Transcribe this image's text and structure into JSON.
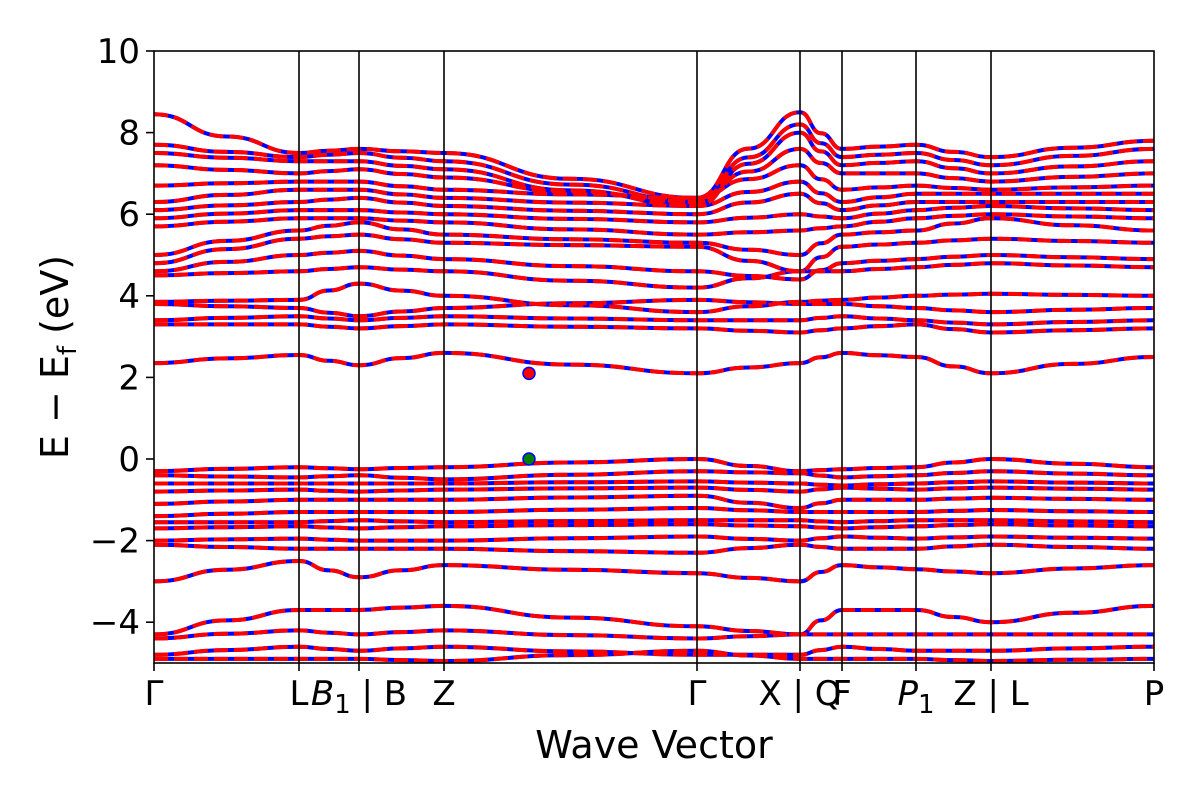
{
  "chart_data": {
    "type": "line",
    "title": "",
    "xlabel": "Wave Vector",
    "ylabel": "E − E",
    "ylabel_sub": "f",
    "ylabel_unit": " (eV)",
    "ylim": [
      -5,
      10
    ],
    "yticks": [
      {
        "value": 10,
        "label": "10"
      },
      {
        "value": 8,
        "label": "8"
      },
      {
        "value": 6,
        "label": "6"
      },
      {
        "value": 4,
        "label": "4"
      },
      {
        "value": 2,
        "label": "2"
      },
      {
        "value": 0,
        "label": "0"
      },
      {
        "value": -2,
        "label": "−2"
      },
      {
        "value": -4,
        "label": "−4"
      }
    ],
    "xlim": [
      0,
      1
    ],
    "kpoints": [
      {
        "pos": 0.0,
        "label": "Γ"
      },
      {
        "pos": 0.145,
        "label": "L"
      },
      {
        "pos": 0.205,
        "label": "B",
        "sub": "1",
        "suffix": " | B"
      },
      {
        "pos": 0.29,
        "label": "Z"
      },
      {
        "pos": 0.543,
        "label": "Γ"
      },
      {
        "pos": 0.646,
        "label": "X | Q"
      },
      {
        "pos": 0.688,
        "label": "F"
      },
      {
        "pos": 0.762,
        "label": "P",
        "sub": "1",
        "italic": true
      },
      {
        "pos": 0.837,
        "label": "Z | L"
      },
      {
        "pos": 1.0,
        "label": "P"
      }
    ],
    "series_styles": [
      {
        "color": "#0000ff",
        "dash": "solid"
      },
      {
        "color": "#ff0000",
        "dash": "dashed"
      }
    ],
    "markers": [
      {
        "x": 0.375,
        "y": 2.1,
        "color": "#ff0000",
        "edge": "#0000ff",
        "meaning": "CBM"
      },
      {
        "x": 0.375,
        "y": 0.0,
        "color": "#008000",
        "edge": "#0000ff",
        "meaning": "VBM"
      }
    ],
    "bands": [
      {
        "segment_values": [
          8.45,
          7.5,
          7.6,
          7.5,
          6.4,
          8.5,
          7.6,
          7.7,
          7.4,
          7.8,
          7.6
        ]
      },
      {
        "segment_values": [
          7.7,
          7.4,
          7.5,
          7.3,
          6.3,
          8.2,
          7.4,
          7.5,
          7.2,
          7.6,
          7.4
        ]
      },
      {
        "segment_values": [
          7.5,
          7.3,
          7.3,
          7.1,
          6.2,
          8.0,
          7.2,
          7.3,
          7.0,
          7.3,
          7.2
        ]
      },
      {
        "segment_values": [
          7.2,
          7.0,
          7.1,
          6.9,
          6.3,
          7.6,
          7.0,
          7.0,
          6.8,
          7.0,
          7.0
        ]
      },
      {
        "segment_values": [
          6.7,
          6.8,
          6.8,
          6.6,
          6.4,
          7.2,
          6.6,
          6.7,
          6.6,
          6.7,
          6.9
        ]
      },
      {
        "segment_values": [
          6.3,
          6.6,
          6.6,
          6.4,
          6.2,
          6.8,
          6.3,
          6.5,
          6.5,
          6.5,
          6.6
        ]
      },
      {
        "segment_values": [
          6.1,
          6.3,
          6.4,
          6.2,
          6.0,
          6.5,
          6.1,
          6.3,
          6.3,
          6.3,
          6.3
        ]
      },
      {
        "segment_values": [
          5.9,
          6.1,
          6.1,
          6.0,
          5.8,
          6.0,
          5.9,
          6.1,
          6.2,
          6.1,
          6.0
        ]
      },
      {
        "segment_values": [
          5.7,
          5.9,
          5.9,
          5.8,
          5.5,
          5.6,
          5.7,
          5.9,
          6.0,
          5.9,
          5.8
        ]
      },
      {
        "segment_values": [
          5.0,
          5.6,
          5.8,
          5.5,
          5.3,
          5.0,
          5.5,
          5.6,
          5.9,
          5.6,
          5.4
        ]
      },
      {
        "segment_values": [
          4.8,
          5.4,
          5.5,
          5.3,
          5.2,
          4.6,
          5.2,
          5.3,
          5.4,
          5.3,
          5.0
        ]
      },
      {
        "segment_values": [
          4.6,
          5.0,
          5.1,
          4.9,
          4.6,
          4.4,
          4.8,
          4.9,
          5.0,
          4.9,
          4.8
        ]
      },
      {
        "segment_values": [
          4.5,
          4.6,
          4.7,
          4.6,
          4.2,
          4.6,
          4.6,
          4.7,
          4.8,
          4.7,
          4.3
        ]
      },
      {
        "segment_values": [
          3.85,
          3.9,
          4.3,
          4.0,
          3.6,
          3.85,
          3.9,
          4.0,
          4.05,
          4.0,
          4.2
        ]
      },
      {
        "segment_values": [
          3.8,
          3.7,
          3.5,
          3.7,
          3.9,
          3.8,
          3.8,
          3.7,
          3.6,
          3.7,
          3.7
        ]
      },
      {
        "segment_values": [
          3.4,
          3.5,
          3.4,
          3.5,
          3.4,
          3.4,
          3.5,
          3.4,
          3.3,
          3.4,
          3.5
        ]
      },
      {
        "segment_values": [
          3.3,
          3.3,
          3.2,
          3.3,
          3.2,
          3.1,
          3.2,
          3.3,
          3.1,
          3.2,
          3.3
        ]
      },
      {
        "segment_values": [
          2.35,
          2.55,
          2.3,
          2.6,
          2.1,
          2.35,
          2.6,
          2.5,
          2.1,
          2.5,
          2.6
        ]
      },
      {
        "segment_values": [
          -0.3,
          -0.2,
          -0.25,
          -0.2,
          0.0,
          -0.3,
          -0.25,
          -0.2,
          0.0,
          -0.2,
          -0.3
        ]
      },
      {
        "segment_values": [
          -0.4,
          -0.45,
          -0.4,
          -0.5,
          -0.3,
          -0.35,
          -0.45,
          -0.4,
          -0.3,
          -0.4,
          -0.5
        ]
      },
      {
        "segment_values": [
          -0.6,
          -0.6,
          -0.6,
          -0.6,
          -0.55,
          -0.6,
          -0.65,
          -0.6,
          -0.55,
          -0.6,
          -0.6
        ]
      },
      {
        "segment_values": [
          -0.8,
          -0.75,
          -0.8,
          -0.75,
          -0.7,
          -0.8,
          -0.7,
          -0.75,
          -0.7,
          -0.75,
          -0.8
        ]
      },
      {
        "segment_values": [
          -1.1,
          -1.0,
          -1.0,
          -1.0,
          -0.9,
          -1.2,
          -1.0,
          -1.0,
          -0.95,
          -1.0,
          -1.1
        ]
      },
      {
        "segment_values": [
          -1.4,
          -1.3,
          -1.3,
          -1.3,
          -1.2,
          -1.3,
          -1.3,
          -1.3,
          -1.25,
          -1.3,
          -1.4
        ]
      },
      {
        "segment_values": [
          -1.55,
          -1.55,
          -1.5,
          -1.55,
          -1.5,
          -1.5,
          -1.55,
          -1.5,
          -1.5,
          -1.55,
          -1.5
        ]
      },
      {
        "segment_values": [
          -1.7,
          -1.65,
          -1.7,
          -1.65,
          -1.6,
          -1.65,
          -1.7,
          -1.65,
          -1.6,
          -1.65,
          -1.7
        ]
      },
      {
        "segment_values": [
          -2.0,
          -1.95,
          -2.0,
          -2.0,
          -1.9,
          -2.0,
          -1.9,
          -1.95,
          -1.9,
          -1.95,
          -2.0
        ]
      },
      {
        "segment_values": [
          -2.1,
          -2.2,
          -2.2,
          -2.2,
          -2.3,
          -2.1,
          -2.2,
          -2.2,
          -2.1,
          -2.2,
          -2.2
        ]
      },
      {
        "segment_values": [
          -3.0,
          -2.5,
          -2.9,
          -2.6,
          -2.8,
          -3.0,
          -2.6,
          -2.7,
          -2.8,
          -2.6,
          -2.5
        ]
      },
      {
        "segment_values": [
          -4.3,
          -3.7,
          -3.7,
          -3.6,
          -4.1,
          -4.3,
          -3.7,
          -3.7,
          -4.0,
          -3.6,
          -3.8
        ]
      },
      {
        "segment_values": [
          -4.4,
          -4.2,
          -4.3,
          -4.2,
          -4.4,
          -4.3,
          -4.3,
          -4.3,
          -4.3,
          -4.3,
          -4.4
        ]
      },
      {
        "segment_values": [
          -4.8,
          -4.6,
          -4.7,
          -4.6,
          -4.8,
          -4.8,
          -4.6,
          -4.7,
          -4.7,
          -4.6,
          -4.6
        ]
      },
      {
        "segment_values": [
          -4.9,
          -4.9,
          -4.9,
          -4.95,
          -4.7,
          -4.9,
          -4.9,
          -4.9,
          -4.95,
          -4.9,
          -4.85
        ]
      }
    ]
  }
}
